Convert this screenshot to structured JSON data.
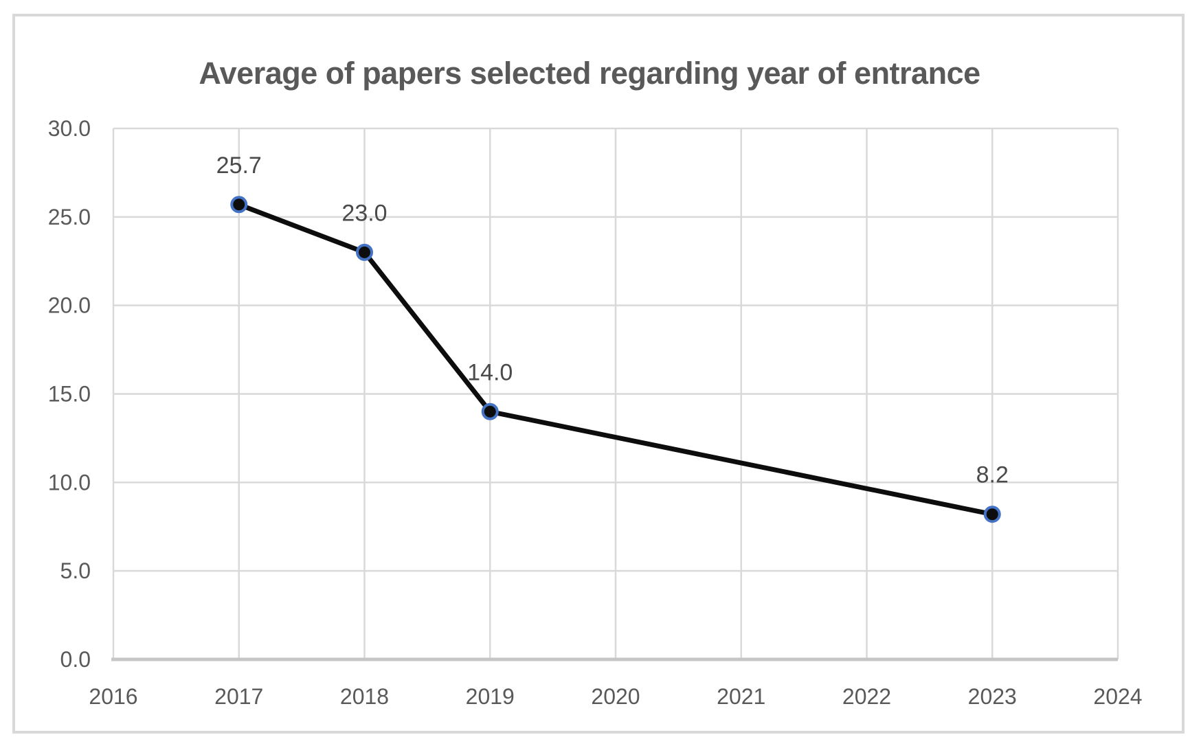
{
  "chart_data": {
    "type": "line",
    "title": "Average of papers selected regarding year of entrance",
    "x": [
      2017,
      2018,
      2019,
      2023
    ],
    "values": [
      25.7,
      23.0,
      14.0,
      8.2
    ],
    "data_labels": [
      "25.7",
      "23.0",
      "14.0",
      "8.2"
    ],
    "data_label_position": "above",
    "xlabel": "",
    "ylabel": "",
    "xlim": [
      2016,
      2024
    ],
    "ylim": [
      0,
      30
    ],
    "x_tick_labels": [
      "2016",
      "2017",
      "2018",
      "2019",
      "2020",
      "2021",
      "2022",
      "2023",
      "2024"
    ],
    "x_tick_values": [
      2016,
      2017,
      2018,
      2019,
      2020,
      2021,
      2022,
      2023,
      2024
    ],
    "y_tick_labels": [
      "0.0",
      "5.0",
      "10.0",
      "15.0",
      "20.0",
      "25.0",
      "30.0"
    ],
    "y_tick_values": [
      0,
      5,
      10,
      15,
      20,
      25,
      30
    ],
    "grid": true,
    "legend": false,
    "colors": {
      "line": "#0d0d0d",
      "marker_fill": "#0d0d0d",
      "marker_border": "#4472c4",
      "gridline": "#d9d9d9",
      "axis_line": "#c6c6c6",
      "tick_label": "#595959",
      "data_label": "#4a4a4a",
      "title": "#595959",
      "figure_border": "#d9d9d9",
      "background": "#ffffff"
    }
  }
}
